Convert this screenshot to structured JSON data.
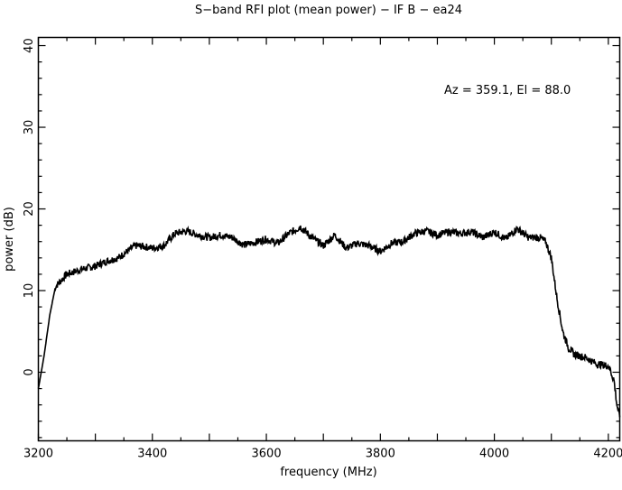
{
  "chart_data": {
    "type": "line",
    "title": "S−band RFI plot (mean power) − IF B − ea24",
    "xlabel": "frequency (MHz)",
    "ylabel": "power (dB)",
    "annotation": "Az = 359.1, El = 88.0",
    "xlim": [
      3200,
      4220
    ],
    "ylim": [
      -8.4,
      41
    ],
    "xticks": [
      3200,
      3400,
      3600,
      3800,
      4000,
      4200
    ],
    "yticks": [
      0,
      10,
      20,
      30,
      40
    ],
    "grid": false,
    "series": [
      {
        "name": "mean power",
        "color": "#000000",
        "x": [
          3200,
          3210,
          3220,
          3230,
          3250,
          3275,
          3300,
          3320,
          3340,
          3360,
          3370,
          3385,
          3400,
          3420,
          3440,
          3460,
          3480,
          3500,
          3520,
          3540,
          3560,
          3580,
          3600,
          3620,
          3640,
          3660,
          3680,
          3700,
          3720,
          3740,
          3760,
          3780,
          3800,
          3820,
          3840,
          3860,
          3880,
          3900,
          3920,
          3940,
          3960,
          3980,
          4000,
          4020,
          4040,
          4060,
          4080,
          4090,
          4100,
          4110,
          4120,
          4130,
          4140,
          4160,
          4180,
          4200,
          4210,
          4215,
          4220
        ],
        "y": [
          -2,
          2,
          7,
          10.5,
          12,
          12.6,
          13,
          13.6,
          14,
          15,
          15.5,
          15.4,
          15.2,
          15.5,
          17,
          17.3,
          16.8,
          16.5,
          16.8,
          16.5,
          15.6,
          15.9,
          16.3,
          15.8,
          17,
          17.8,
          16.5,
          15.5,
          16.8,
          15.2,
          15.8,
          15.5,
          14.8,
          15.8,
          16,
          17,
          17.3,
          16.8,
          17.2,
          17,
          17.2,
          16.5,
          17.2,
          16.3,
          17.6,
          16.5,
          16.5,
          16,
          14,
          9,
          5,
          3,
          2.2,
          1.8,
          1,
          0.8,
          -1,
          -4,
          -5.5
        ]
      }
    ]
  }
}
